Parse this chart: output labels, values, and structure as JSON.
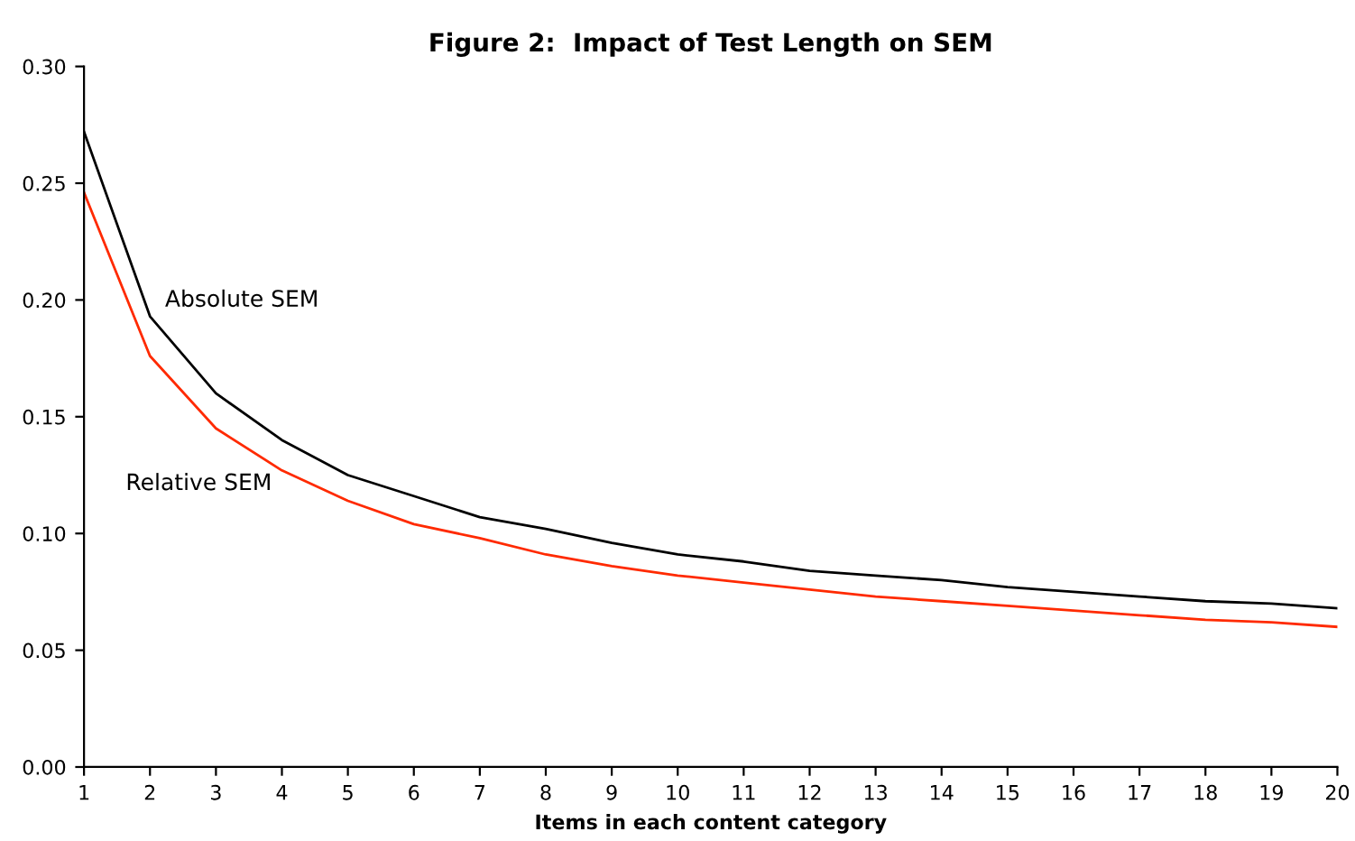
{
  "chart_data": {
    "type": "line",
    "title": "Figure 2:  Impact of Test Length on SEM",
    "xlabel": "Items in each content category",
    "x": [
      1,
      2,
      3,
      4,
      5,
      6,
      7,
      8,
      9,
      10,
      11,
      12,
      13,
      14,
      15,
      16,
      17,
      18,
      19,
      20
    ],
    "series": [
      {
        "name": "Absolute SEM",
        "color": "#000000",
        "values": [
          0.272,
          0.193,
          0.16,
          0.14,
          0.125,
          0.116,
          0.107,
          0.102,
          0.096,
          0.091,
          0.088,
          0.084,
          0.082,
          0.08,
          0.077,
          0.075,
          0.073,
          0.071,
          0.07,
          0.068
        ]
      },
      {
        "name": "Relative SEM",
        "color": "#ff2a00",
        "values": [
          0.246,
          0.176,
          0.145,
          0.127,
          0.114,
          0.104,
          0.098,
          0.091,
          0.086,
          0.082,
          0.079,
          0.076,
          0.073,
          0.071,
          0.069,
          0.067,
          0.065,
          0.063,
          0.062,
          0.06
        ]
      }
    ],
    "xlim": [
      1,
      20
    ],
    "xticks": [
      1,
      2,
      3,
      4,
      5,
      6,
      7,
      8,
      9,
      10,
      11,
      12,
      13,
      14,
      15,
      16,
      17,
      18,
      19,
      20
    ],
    "ylim": [
      0,
      0.3
    ],
    "yticks": [
      {
        "value": 0,
        "label": "0.00"
      },
      {
        "value": 0.05,
        "label": "0.05"
      },
      {
        "value": 0.1,
        "label": "0.10"
      },
      {
        "value": 0.15,
        "label": "0.15"
      },
      {
        "value": 0.2,
        "label": "0.20"
      },
      {
        "value": 0.25,
        "label": "0.25"
      },
      {
        "value": 0.3,
        "label": "0.30"
      }
    ],
    "grid": false,
    "legend": false,
    "marker": "none",
    "line_style": "solid"
  }
}
